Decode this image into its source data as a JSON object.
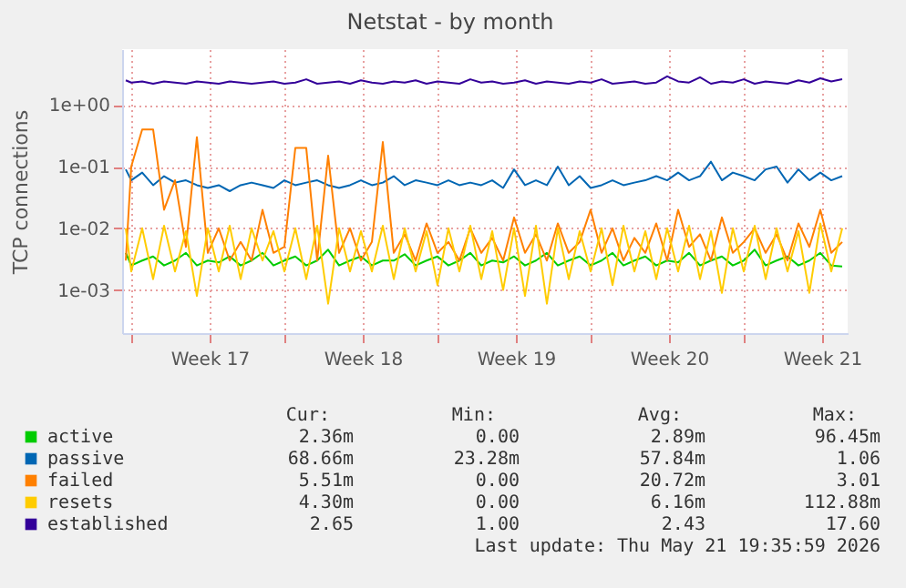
{
  "chart_data": {
    "type": "line",
    "title": "Netstat - by month",
    "ylabel": "TCP connections",
    "log": true,
    "grid": true,
    "legend": "bottom",
    "marker": "none",
    "line_style": "solid",
    "ylim": [
      0.0002,
      8
    ],
    "yticks": [
      {
        "value": 1,
        "label": "1e+00"
      },
      {
        "value": 0.1,
        "label": "1e-01"
      },
      {
        "value": 0.01,
        "label": "1e-02"
      },
      {
        "value": 0.001,
        "label": "1e-03"
      }
    ],
    "xlim": [
      "2026-04-19T14:00",
      "2026-05-22T18:00"
    ],
    "xticks": [
      {
        "value": "2026-04-20T00:00",
        "label": null
      },
      {
        "value": "2026-04-23T14:00",
        "label": "Week 17"
      },
      {
        "value": "2026-04-27T00:00",
        "label": null
      },
      {
        "value": "2026-04-30T14:00",
        "label": "Week 18"
      },
      {
        "value": "2026-05-04T00:00",
        "label": null
      },
      {
        "value": "2026-05-07T14:00",
        "label": "Week 19"
      },
      {
        "value": "2026-05-11T00:00",
        "label": null
      },
      {
        "value": "2026-05-14T14:00",
        "label": "Week 20"
      },
      {
        "value": "2026-05-18T00:00",
        "label": null
      },
      {
        "value": "2026-05-21T14:00",
        "label": "Week 21"
      }
    ],
    "x": [
      "2026-04-19T18:00",
      "2026-04-20T00:00",
      "2026-04-20T12:00",
      "2026-04-21T00:00",
      "2026-04-21T12:00",
      "2026-04-22T00:00",
      "2026-04-22T12:00",
      "2026-04-23T00:00",
      "2026-04-23T12:00",
      "2026-04-24T00:00",
      "2026-04-24T12:00",
      "2026-04-25T00:00",
      "2026-04-25T12:00",
      "2026-04-26T00:00",
      "2026-04-26T12:00",
      "2026-04-27T00:00",
      "2026-04-27T12:00",
      "2026-04-28T00:00",
      "2026-04-28T12:00",
      "2026-04-29T00:00",
      "2026-04-29T12:00",
      "2026-04-30T00:00",
      "2026-04-30T12:00",
      "2026-05-01T00:00",
      "2026-05-01T12:00",
      "2026-05-02T00:00",
      "2026-05-02T12:00",
      "2026-05-03T00:00",
      "2026-05-03T12:00",
      "2026-05-04T00:00",
      "2026-05-04T12:00",
      "2026-05-05T00:00",
      "2026-05-05T12:00",
      "2026-05-06T00:00",
      "2026-05-06T12:00",
      "2026-05-07T00:00",
      "2026-05-07T12:00",
      "2026-05-08T00:00",
      "2026-05-08T12:00",
      "2026-05-09T00:00",
      "2026-05-09T12:00",
      "2026-05-10T00:00",
      "2026-05-10T12:00",
      "2026-05-11T00:00",
      "2026-05-11T12:00",
      "2026-05-12T00:00",
      "2026-05-12T12:00",
      "2026-05-13T00:00",
      "2026-05-13T12:00",
      "2026-05-14T00:00",
      "2026-05-14T12:00",
      "2026-05-15T00:00",
      "2026-05-15T12:00",
      "2026-05-16T00:00",
      "2026-05-16T12:00",
      "2026-05-17T00:00",
      "2026-05-17T12:00",
      "2026-05-18T00:00",
      "2026-05-18T12:00",
      "2026-05-19T00:00",
      "2026-05-19T12:00",
      "2026-05-20T00:00",
      "2026-05-20T12:00",
      "2026-05-21T00:00",
      "2026-05-21T12:00",
      "2026-05-22T00:00",
      "2026-05-22T12:00"
    ],
    "series": [
      {
        "name": "active",
        "color": "#00cc00",
        "values": [
          0.004,
          0.0025,
          0.003,
          0.0035,
          0.0025,
          0.003,
          0.004,
          0.0025,
          0.003,
          0.0028,
          0.0035,
          0.0025,
          0.003,
          0.004,
          0.0025,
          0.003,
          0.0035,
          0.0025,
          0.003,
          0.0045,
          0.0025,
          0.003,
          0.0035,
          0.0025,
          0.003,
          0.003,
          0.0038,
          0.0025,
          0.003,
          0.0035,
          0.0025,
          0.003,
          0.004,
          0.0025,
          0.003,
          0.0028,
          0.0035,
          0.0025,
          0.003,
          0.004,
          0.0025,
          0.003,
          0.0035,
          0.0025,
          0.003,
          0.004,
          0.0025,
          0.003,
          0.0035,
          0.0025,
          0.003,
          0.0028,
          0.004,
          0.0025,
          0.003,
          0.0035,
          0.0025,
          0.003,
          0.0045,
          0.0025,
          0.003,
          0.0035,
          0.0025,
          0.003,
          0.004,
          0.0025,
          0.0024
        ]
      },
      {
        "name": "passive",
        "color": "#0066b3",
        "values": [
          0.09,
          0.06,
          0.08,
          0.05,
          0.07,
          0.055,
          0.06,
          0.05,
          0.045,
          0.05,
          0.04,
          0.05,
          0.055,
          0.05,
          0.045,
          0.06,
          0.05,
          0.055,
          0.06,
          0.05,
          0.045,
          0.05,
          0.06,
          0.05,
          0.055,
          0.07,
          0.05,
          0.06,
          0.055,
          0.05,
          0.06,
          0.05,
          0.055,
          0.05,
          0.06,
          0.045,
          0.09,
          0.05,
          0.06,
          0.05,
          0.1,
          0.05,
          0.07,
          0.045,
          0.05,
          0.06,
          0.05,
          0.055,
          0.06,
          0.07,
          0.06,
          0.08,
          0.06,
          0.07,
          0.12,
          0.06,
          0.08,
          0.07,
          0.06,
          0.09,
          0.1,
          0.055,
          0.09,
          0.06,
          0.08,
          0.06,
          0.07
        ]
      },
      {
        "name": "failed",
        "color": "#ff8000",
        "values": [
          0.003,
          0.1,
          0.4,
          0.4,
          0.02,
          0.06,
          0.005,
          0.3,
          0.004,
          0.01,
          0.003,
          0.006,
          0.003,
          0.02,
          0.004,
          0.005,
          0.2,
          0.2,
          0.003,
          0.15,
          0.004,
          0.01,
          0.003,
          0.006,
          0.25,
          0.004,
          0.008,
          0.003,
          0.012,
          0.004,
          0.006,
          0.003,
          0.01,
          0.004,
          0.007,
          0.003,
          0.015,
          0.004,
          0.008,
          0.003,
          0.012,
          0.004,
          0.006,
          0.02,
          0.004,
          0.01,
          0.003,
          0.007,
          0.004,
          0.012,
          0.003,
          0.02,
          0.005,
          0.008,
          0.003,
          0.015,
          0.004,
          0.006,
          0.01,
          0.004,
          0.008,
          0.003,
          0.012,
          0.005,
          0.02,
          0.004,
          0.006
        ]
      },
      {
        "name": "resets",
        "color": "#ffcc00",
        "values": [
          0.01,
          0.002,
          0.01,
          0.0015,
          0.011,
          0.002,
          0.009,
          0.0008,
          0.01,
          0.002,
          0.011,
          0.0015,
          0.01,
          0.003,
          0.009,
          0.002,
          0.01,
          0.0015,
          0.011,
          0.0006,
          0.01,
          0.002,
          0.009,
          0.002,
          0.011,
          0.0015,
          0.01,
          0.002,
          0.009,
          0.0012,
          0.01,
          0.002,
          0.011,
          0.0015,
          0.009,
          0.001,
          0.01,
          0.0008,
          0.011,
          0.0006,
          0.01,
          0.0015,
          0.009,
          0.002,
          0.01,
          0.0012,
          0.011,
          0.002,
          0.009,
          0.0015,
          0.01,
          0.002,
          0.011,
          0.0015,
          0.009,
          0.0009,
          0.01,
          0.002,
          0.011,
          0.0015,
          0.01,
          0.002,
          0.009,
          0.0009,
          0.012,
          0.002,
          0.01
        ]
      },
      {
        "name": "established",
        "color": "#330099",
        "values": [
          2.5,
          2.3,
          2.4,
          2.2,
          2.4,
          2.3,
          2.2,
          2.4,
          2.3,
          2.2,
          2.4,
          2.3,
          2.2,
          2.3,
          2.4,
          2.2,
          2.3,
          2.6,
          2.2,
          2.3,
          2.4,
          2.2,
          2.5,
          2.3,
          2.2,
          2.4,
          2.3,
          2.5,
          2.2,
          2.4,
          2.3,
          2.2,
          2.6,
          2.3,
          2.4,
          2.2,
          2.3,
          2.5,
          2.2,
          2.4,
          2.3,
          2.2,
          2.4,
          2.3,
          2.6,
          2.2,
          2.3,
          2.4,
          2.2,
          2.3,
          2.9,
          2.4,
          2.3,
          2.8,
          2.2,
          2.4,
          2.3,
          2.6,
          2.2,
          2.4,
          2.3,
          2.2,
          2.5,
          2.3,
          2.7,
          2.4,
          2.6
        ]
      }
    ],
    "annotations": [
      "Cur:",
      "Min:",
      "Avg:",
      "Max:",
      "2.36m",
      "0.00",
      "2.89m",
      "96.45m",
      "68.66m",
      "23.28m",
      "57.84m",
      "1.06",
      "5.51m",
      "0.00",
      "20.72m",
      "3.01",
      "4.30m",
      "0.00",
      "6.16m",
      "112.88m",
      "2.65",
      "1.00",
      "2.43",
      "17.60",
      "Last update: Thu May 21 19:35:59 2026"
    ]
  }
}
